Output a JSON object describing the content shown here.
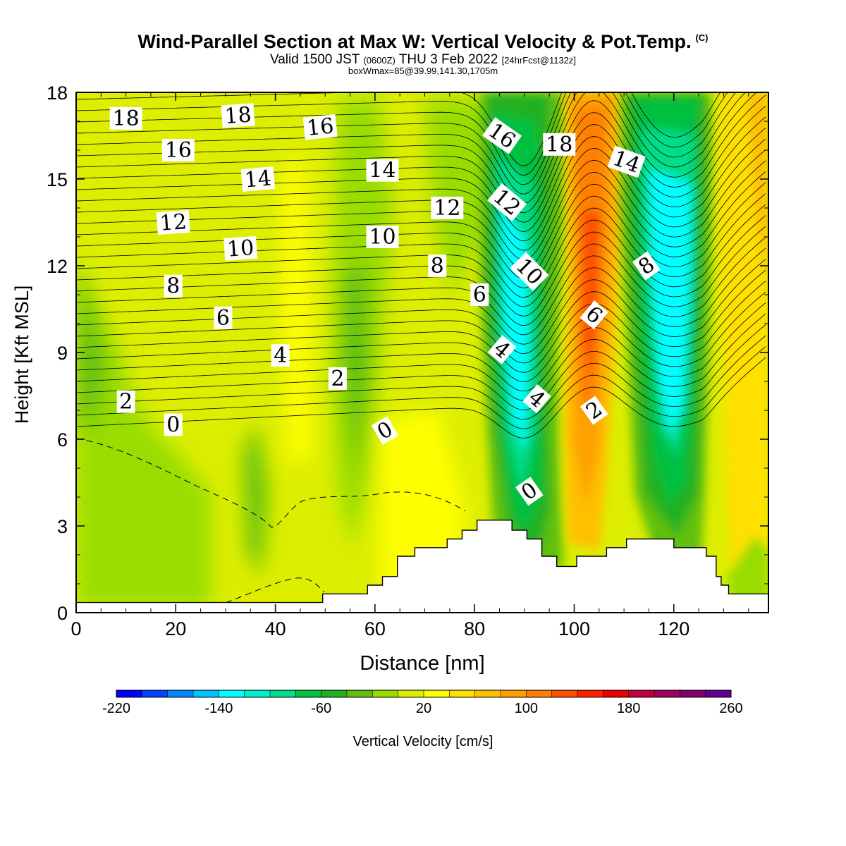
{
  "title": {
    "main": "Wind-Parallel Section at Max W: Vertical Velocity & Pot.Temp.",
    "copyright": "(C)",
    "valid_prefix": "Valid 1500 JST",
    "valid_z": "(0600Z)",
    "valid_date": "THU 3 Feb 2022",
    "valid_fcst": "[24hrFcst@1132z]",
    "boxwmax": "boxWmax=85@39.99,141.30,1705m"
  },
  "chart_data": {
    "type": "heatmap",
    "xlabel": "Distance [nm]",
    "ylabel": "Height [Kft MSL]",
    "xlim": [
      0,
      139
    ],
    "ylim": [
      0,
      18
    ],
    "x_ticks": [
      0,
      20,
      40,
      60,
      80,
      100,
      120
    ],
    "y_ticks": [
      0,
      3,
      6,
      9,
      12,
      15,
      18
    ],
    "colorbar": {
      "label": "Vertical Velocity [cm/s]",
      "min": -220,
      "max": 260,
      "step": 20,
      "tick_values": [
        -220,
        -140,
        -60,
        20,
        100,
        180,
        260
      ],
      "tick_labels": [
        "-220",
        "-140",
        "-60",
        "20",
        "100",
        "180",
        "260"
      ],
      "colors": [
        "#0000ff",
        "#0044ff",
        "#0088ff",
        "#00c4ff",
        "#00ffff",
        "#00eec8",
        "#00dd88",
        "#00c040",
        "#20b020",
        "#60c010",
        "#99dd00",
        "#ddee00",
        "#ffff00",
        "#ffe000",
        "#ffc000",
        "#ffa000",
        "#ff8000",
        "#ff5000",
        "#ff2000",
        "#ee0000",
        "#c00040",
        "#a00060",
        "#800070",
        "#600090"
      ]
    },
    "terrain_kft": [
      [
        0,
        0.35
      ],
      [
        49.5,
        0.35
      ],
      [
        49.5,
        0.65
      ],
      [
        58.5,
        0.65
      ],
      [
        58.5,
        0.95
      ],
      [
        61.5,
        0.95
      ],
      [
        61.5,
        1.25
      ],
      [
        64.5,
        1.25
      ],
      [
        64.5,
        1.95
      ],
      [
        68,
        1.95
      ],
      [
        68,
        2.25
      ],
      [
        74.5,
        2.25
      ],
      [
        74.5,
        2.55
      ],
      [
        77.5,
        2.55
      ],
      [
        77.5,
        2.85
      ],
      [
        80.5,
        2.85
      ],
      [
        80.5,
        3.2
      ],
      [
        87.5,
        3.2
      ],
      [
        87.5,
        2.85
      ],
      [
        90.5,
        2.85
      ],
      [
        90.5,
        2.55
      ],
      [
        93.5,
        2.55
      ],
      [
        93.5,
        1.95
      ],
      [
        96.5,
        1.95
      ],
      [
        96.5,
        1.6
      ],
      [
        100.5,
        1.6
      ],
      [
        100.5,
        1.95
      ],
      [
        106.5,
        1.95
      ],
      [
        106.5,
        2.25
      ],
      [
        110.5,
        2.25
      ],
      [
        110.5,
        2.55
      ],
      [
        120,
        2.55
      ],
      [
        120,
        2.25
      ],
      [
        126.5,
        2.25
      ],
      [
        126.5,
        1.95
      ],
      [
        128.5,
        1.95
      ],
      [
        128.5,
        1.25
      ],
      [
        129.5,
        1.25
      ],
      [
        129.5,
        0.95
      ],
      [
        131,
        0.95
      ],
      [
        131,
        0.65
      ],
      [
        139,
        0.65
      ]
    ],
    "theta_labels": [
      {
        "text": "18",
        "x": 10,
        "y": 17.1,
        "rot": 0
      },
      {
        "text": "18",
        "x": 32.5,
        "y": 17.2,
        "rot": -4
      },
      {
        "text": "16",
        "x": 20.5,
        "y": 16.0,
        "rot": 0
      },
      {
        "text": "16",
        "x": 49,
        "y": 16.8,
        "rot": -6
      },
      {
        "text": "16",
        "x": 85.5,
        "y": 16.5,
        "rot": 35
      },
      {
        "text": "18",
        "x": 97,
        "y": 16.2,
        "rot": 0
      },
      {
        "text": "14",
        "x": 36.5,
        "y": 15.0,
        "rot": -5
      },
      {
        "text": "14",
        "x": 61.5,
        "y": 15.3,
        "rot": 0
      },
      {
        "text": "14",
        "x": 110.5,
        "y": 15.6,
        "rot": 20
      },
      {
        "text": "12",
        "x": 19.5,
        "y": 13.5,
        "rot": -4
      },
      {
        "text": "12",
        "x": 74.5,
        "y": 14.0,
        "rot": 0
      },
      {
        "text": "12",
        "x": 86.5,
        "y": 14.2,
        "rot": 40
      },
      {
        "text": "10",
        "x": 33,
        "y": 12.6,
        "rot": -4
      },
      {
        "text": "10",
        "x": 61.5,
        "y": 13.0,
        "rot": 0
      },
      {
        "text": "10",
        "x": 91,
        "y": 11.8,
        "rot": 45
      },
      {
        "text": "8",
        "x": 19.5,
        "y": 11.3,
        "rot": 0
      },
      {
        "text": "8",
        "x": 72.5,
        "y": 12.0,
        "rot": 0
      },
      {
        "text": "8",
        "x": 114.5,
        "y": 12.0,
        "rot": -35
      },
      {
        "text": "6",
        "x": 29.5,
        "y": 10.2,
        "rot": 0
      },
      {
        "text": "6",
        "x": 81,
        "y": 11.0,
        "rot": 0
      },
      {
        "text": "6",
        "x": 104,
        "y": 10.3,
        "rot": 40
      },
      {
        "text": "4",
        "x": 41,
        "y": 8.9,
        "rot": 0
      },
      {
        "text": "4",
        "x": 85.5,
        "y": 9.1,
        "rot": 40
      },
      {
        "text": "4",
        "x": 92.5,
        "y": 7.4,
        "rot": 40
      },
      {
        "text": "2",
        "x": 52.5,
        "y": 8.1,
        "rot": 0
      },
      {
        "text": "2",
        "x": 10,
        "y": 7.3,
        "rot": 0
      },
      {
        "text": "2",
        "x": 104,
        "y": 7.0,
        "rot": -35
      },
      {
        "text": "0",
        "x": 19.5,
        "y": 6.5,
        "rot": 0
      },
      {
        "text": "0",
        "x": 62,
        "y": 6.3,
        "rot": -30
      },
      {
        "text": "0",
        "x": 91,
        "y": 4.2,
        "rot": -35
      }
    ]
  }
}
